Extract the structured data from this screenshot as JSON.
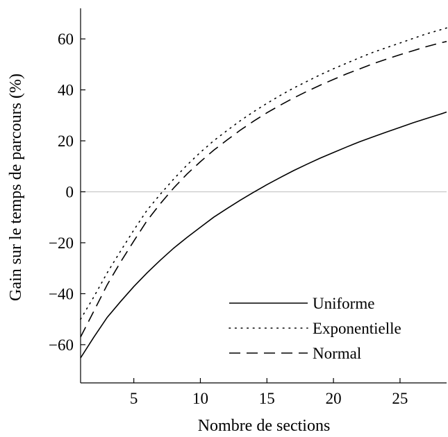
{
  "chart_data": {
    "type": "line",
    "title": "",
    "xlabel": "Nombre de sections",
    "ylabel": "Gain sur le temps de parcours (%)",
    "xlim": [
      1,
      28.5
    ],
    "ylim": [
      -75,
      72
    ],
    "xticks": [
      5,
      10,
      15,
      20,
      25
    ],
    "yticks": [
      -60,
      -40,
      -20,
      0,
      20,
      40,
      60
    ],
    "zero_line": true,
    "legend_position": "bottom-right",
    "x": [
      1,
      2,
      3,
      4,
      5,
      6,
      7,
      8,
      9,
      10,
      11,
      12,
      13,
      14,
      15,
      16,
      17,
      18,
      19,
      20,
      21,
      22,
      23,
      24,
      25,
      26,
      27,
      28,
      28.5
    ],
    "series": [
      {
        "name": "Uniforme",
        "style": "solid",
        "values": [
          -65.2,
          -57.0,
          -49.3,
          -43.1,
          -37.2,
          -31.8,
          -26.8,
          -22.1,
          -17.9,
          -13.9,
          -10.0,
          -6.6,
          -3.3,
          -0.2,
          2.8,
          5.6,
          8.3,
          10.8,
          13.2,
          15.4,
          17.6,
          19.7,
          21.6,
          23.5,
          25.3,
          27.1,
          28.8,
          30.4,
          31.3
        ]
      },
      {
        "name": "Exponentielle",
        "style": "dotted",
        "values": [
          -50.0,
          -41.2,
          -31.8,
          -23.3,
          -15.0,
          -7.2,
          -0.9,
          5.0,
          10.5,
          15.5,
          20.0,
          24.0,
          27.9,
          31.4,
          34.7,
          37.8,
          40.7,
          43.3,
          45.9,
          48.3,
          50.5,
          52.7,
          54.8,
          56.6,
          58.4,
          60.2,
          62.0,
          63.5,
          64.3
        ]
      },
      {
        "name": "Normal",
        "style": "dashed",
        "values": [
          -57.0,
          -46.8,
          -36.5,
          -27.6,
          -19.3,
          -11.3,
          -4.6,
          1.5,
          7.0,
          11.8,
          16.3,
          20.3,
          24.2,
          27.7,
          31.0,
          34.0,
          36.8,
          39.4,
          41.8,
          44.1,
          46.3,
          48.3,
          50.3,
          52.1,
          53.8,
          55.4,
          57.0,
          58.4,
          59.0
        ]
      }
    ]
  }
}
